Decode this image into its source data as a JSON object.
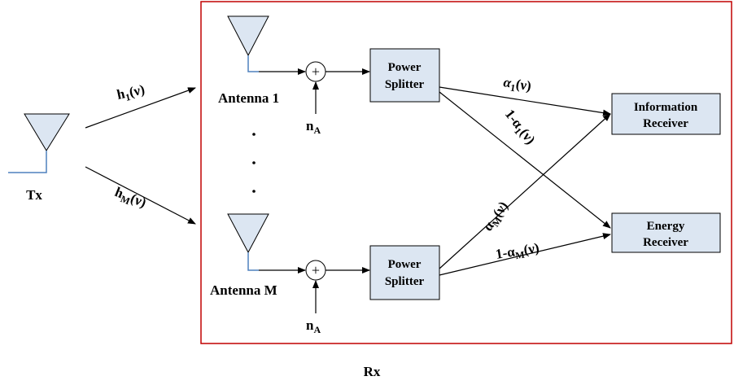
{
  "transmitter": {
    "label": "Tx"
  },
  "receiver": {
    "label": "Rx"
  },
  "channels": [
    {
      "base": "h",
      "sub": "1",
      "rest": "(ν)"
    },
    {
      "base": "h",
      "sub": "M",
      "rest": "(ν)"
    }
  ],
  "antennas": [
    {
      "label": "Antenna 1",
      "noise": {
        "base": "n",
        "sub": "A"
      }
    },
    {
      "label": "Antenna M",
      "noise": {
        "base": "n",
        "sub": "A"
      }
    }
  ],
  "splitters": [
    {
      "line1": "Power",
      "line2": "Splitter"
    },
    {
      "line1": "Power",
      "line2": "Splitter"
    }
  ],
  "receivers": [
    {
      "line1": "Information",
      "line2": "Receiver"
    },
    {
      "line1": "Energy",
      "line2": "Receiver"
    }
  ],
  "ratios": [
    {
      "base": "α",
      "sub": "1",
      "rest": "(ν)"
    },
    {
      "base": "1-α",
      "sub": "1",
      "rest": "(ν)"
    },
    {
      "base": "α",
      "sub": "M",
      "rest": "(ν)"
    },
    {
      "base": "1-α",
      "sub": "M",
      "rest": "(ν)"
    }
  ]
}
